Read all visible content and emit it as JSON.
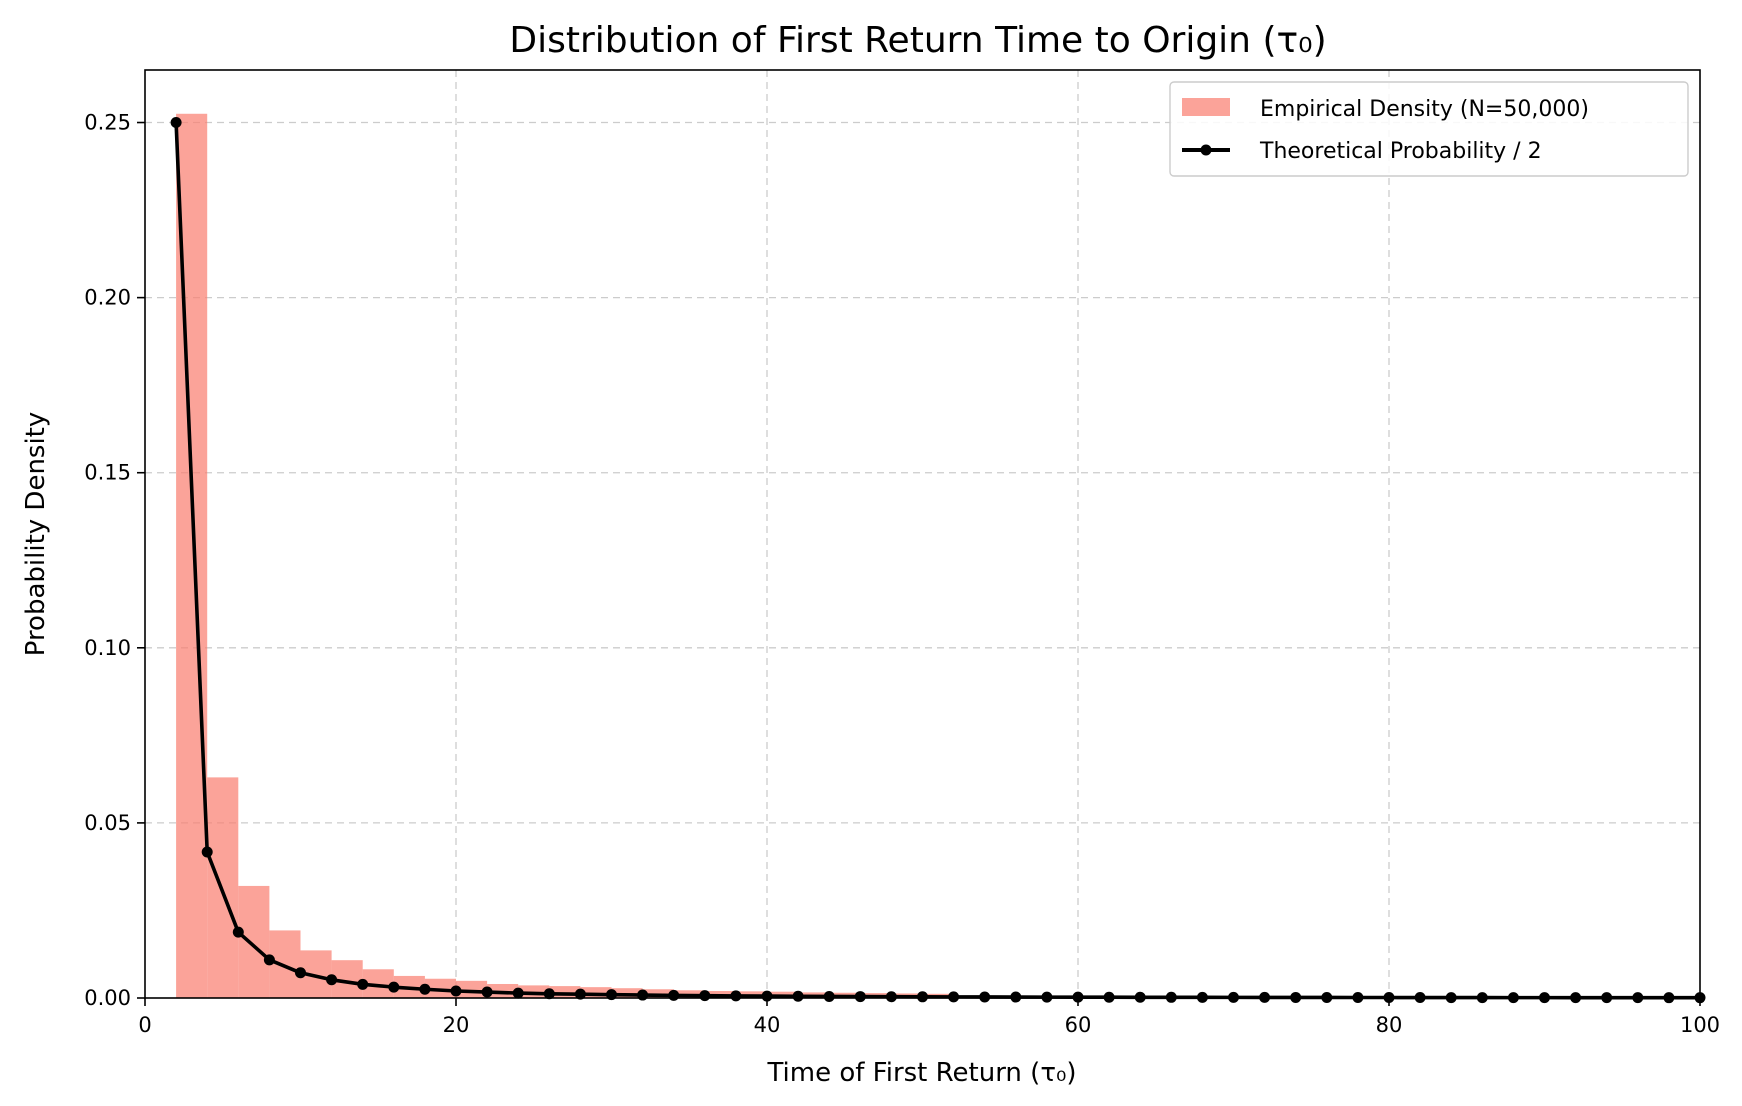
{
  "chart_data": {
    "type": "bar",
    "title": "Distribution of First Return Time to Origin (τ₀)",
    "xlabel": "Time of First Return (τ₀)",
    "ylabel": "Probability Density",
    "xlim": [
      0,
      100
    ],
    "ylim": [
      0,
      0.265
    ],
    "x_ticks": [
      0,
      20,
      40,
      60,
      80,
      100
    ],
    "x_tick_labels": [
      "0",
      "20",
      "40",
      "60",
      "80",
      "100"
    ],
    "y_ticks": [
      0.0,
      0.05,
      0.1,
      0.15,
      0.2,
      0.25
    ],
    "y_tick_labels": [
      "0.00",
      "0.05",
      "0.10",
      "0.15",
      "0.20",
      "0.25"
    ],
    "grid": true,
    "legend_position": "top-right",
    "colors": {
      "bars": "#FA8072",
      "line": "#000000",
      "grid": "#cccccc"
    },
    "series": [
      {
        "name": "Empirical Density (N=50,000)",
        "kind": "histogram",
        "bin_width": 2,
        "bin_starts": [
          2,
          4,
          6,
          8,
          10,
          12,
          14,
          16,
          18,
          20,
          22,
          24,
          26,
          28,
          30,
          32,
          34,
          36,
          38,
          40,
          42,
          44,
          46,
          48,
          50
        ],
        "values": [
          0.2525,
          0.063,
          0.032,
          0.0193,
          0.0136,
          0.0108,
          0.0082,
          0.0063,
          0.0055,
          0.0049,
          0.004,
          0.0036,
          0.0034,
          0.0031,
          0.0028,
          0.0025,
          0.0022,
          0.002,
          0.0019,
          0.0018,
          0.0016,
          0.0015,
          0.0014,
          0.0013,
          0.0012
        ]
      },
      {
        "name": "Theoretical Probability / 2",
        "kind": "line",
        "x": [
          2,
          4,
          6,
          8,
          10,
          12,
          14,
          16,
          18,
          20,
          22,
          24,
          26,
          28,
          30,
          32,
          34,
          36,
          38,
          40,
          42,
          44,
          46,
          48,
          50,
          52,
          54,
          56,
          58,
          60,
          62,
          64,
          66,
          68,
          70,
          72,
          74,
          76,
          78,
          80,
          82,
          84,
          86,
          88,
          90,
          92,
          94,
          96,
          98,
          100
        ],
        "values": [
          0.25,
          0.0417,
          0.0188,
          0.0109,
          0.0072,
          0.0052,
          0.0039,
          0.0031,
          0.0025,
          0.002,
          0.0017,
          0.0014,
          0.0012,
          0.0011,
          0.00095,
          0.00084,
          0.00074,
          0.00067,
          0.0006,
          0.00054,
          0.00049,
          0.00044,
          0.00041,
          0.00037,
          0.00034,
          0.00032,
          0.00029,
          0.00027,
          0.00025,
          0.00024,
          0.00022,
          0.00021,
          0.0002,
          0.00019,
          0.00018,
          0.00017,
          0.00016,
          0.00015,
          0.00014,
          0.00014,
          0.00013,
          0.00012,
          0.00012,
          0.00011,
          0.00011,
          0.0001,
          0.0001,
          0.0001,
          9e-05,
          9e-05
        ]
      }
    ]
  }
}
